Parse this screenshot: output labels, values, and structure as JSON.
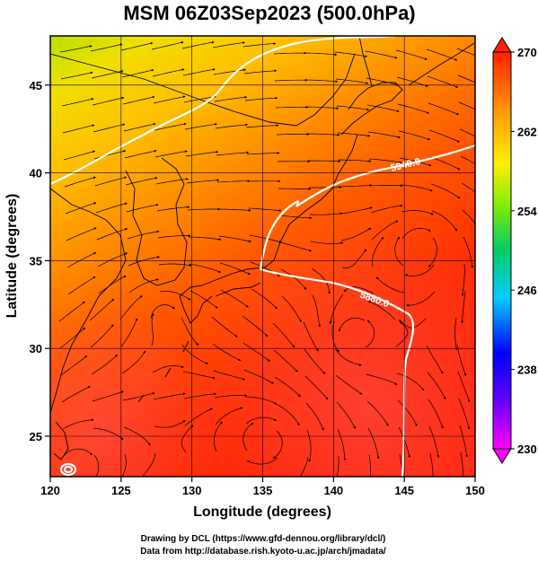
{
  "title": "MSM 06Z03Sep2023 (500.0hPa)",
  "map": {
    "xlabel": "Longitude (degrees)",
    "ylabel": "Latitude  (degrees)",
    "lon_range": [
      120,
      150
    ],
    "lat_range": [
      22.7,
      47.8
    ],
    "lon_ticks": [
      "120",
      "125",
      "130",
      "135",
      "140",
      "145",
      "150"
    ],
    "lat_ticks": [
      "25",
      "30",
      "35",
      "40",
      "45"
    ],
    "field": "temperature (K)",
    "vectors": "wind streamlines",
    "contours": [
      {
        "label": "5940.0",
        "value": 5940
      },
      {
        "label": "5880.0",
        "value": 5880
      }
    ]
  },
  "colorbar": {
    "min": 230,
    "max": 270,
    "tick_labels": [
      "270",
      "262",
      "254",
      "246",
      "238",
      "230"
    ],
    "colors": [
      "#ff00ff",
      "#0000ff",
      "#00ccff",
      "#00cc66",
      "#88ee00",
      "#ffee00",
      "#ff9900",
      "#ff0000"
    ]
  },
  "credits": {
    "line1": "Drawing by DCL (https://www.gfd-dennou.org/library/dcl/)",
    "line2": "Data from http://database.rish.kyoto-u.ac.jp/arch/jmadata/"
  }
}
